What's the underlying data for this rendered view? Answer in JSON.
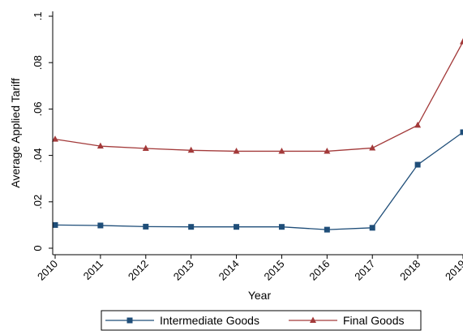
{
  "chart_data": {
    "type": "line",
    "title": "",
    "xlabel": "Year",
    "ylabel": "Average Applied Tariff",
    "x": [
      2010,
      2011,
      2012,
      2013,
      2014,
      2015,
      2016,
      2017,
      2018,
      2019
    ],
    "xtick_labels": [
      "2010",
      "2011",
      "2012",
      "2013",
      "2014",
      "2015",
      "2016",
      "2017",
      "2018",
      "2019"
    ],
    "ylim": [
      0,
      0.1
    ],
    "ytick_values": [
      0,
      0.02,
      0.04,
      0.06,
      0.08,
      0.1
    ],
    "ytick_labels": [
      "0",
      ".02",
      ".04",
      ".06",
      ".08",
      ".1"
    ],
    "grid": false,
    "legend_position": "bottom",
    "series": [
      {
        "name": "Intermediate Goods",
        "marker": "square",
        "color": "#1f4e79",
        "values": [
          0.01,
          0.0098,
          0.0093,
          0.0092,
          0.0092,
          0.0092,
          0.008,
          0.0088,
          0.036,
          0.05
        ]
      },
      {
        "name": "Final Goods",
        "marker": "triangle",
        "color": "#a33a3a",
        "values": [
          0.047,
          0.044,
          0.043,
          0.0422,
          0.0418,
          0.0418,
          0.0418,
          0.0432,
          0.053,
          0.089
        ]
      }
    ]
  }
}
